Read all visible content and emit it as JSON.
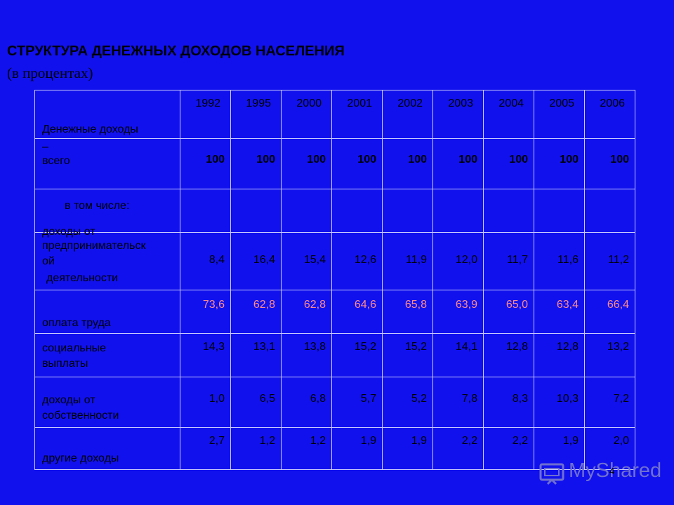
{
  "title": "СТРУКТУРА ДЕНЕЖНЫХ ДОХОДОВ НАСЕЛЕНИЯ",
  "subtitle": "(в процентах)",
  "table": {
    "years": [
      "1992",
      "1995",
      "2000",
      "2001",
      "2002",
      "2003",
      "2004",
      "2005",
      "2006"
    ],
    "header_label": "Денежные доходы",
    "total": {
      "label_lines": [
        "–",
        "всего"
      ],
      "values": [
        "100",
        "100",
        "100",
        "100",
        "100",
        "100",
        "100",
        "100",
        "100"
      ]
    },
    "including_label": "в том числе:",
    "business": {
      "label_lines": [
        "доходы от",
        "предпринимательск",
        "ой",
        "деятельности"
      ],
      "values": [
        "8,4",
        "16,4",
        "15,4",
        "12,6",
        "11,9",
        "12,0",
        "11,7",
        "11,6",
        "11,2"
      ]
    },
    "wages": {
      "label": "оплата труда",
      "values": [
        "73,6",
        "62,8",
        "62,8",
        "64,6",
        "65,8",
        "63,9",
        "65,0",
        "63,4",
        "66,4"
      ]
    },
    "social": {
      "label_lines": [
        "социальные",
        "выплаты"
      ],
      "values": [
        "14,3",
        "13,1",
        "13,8",
        "15,2",
        "15,2",
        "14,1",
        "12,8",
        "12,8",
        "13,2"
      ]
    },
    "property": {
      "label_lines": [
        "доходы от",
        "собственности"
      ],
      "values": [
        "1,0",
        "6,5",
        "6,8",
        "5,7",
        "5,2",
        "7,8",
        "8,3",
        "10,3",
        "7,2"
      ]
    },
    "other": {
      "label": "другие доходы",
      "values": [
        "2,7",
        "1,2",
        "1,2",
        "1,9",
        "1,9",
        "2,2",
        "2,2",
        "1,9",
        "2,0"
      ]
    }
  },
  "watermark": "MyShared",
  "page_number": "4",
  "colors": {
    "background": "#1111ee",
    "grid_lines": "#c8c8ff",
    "wages_values": "#ff8a8a"
  }
}
